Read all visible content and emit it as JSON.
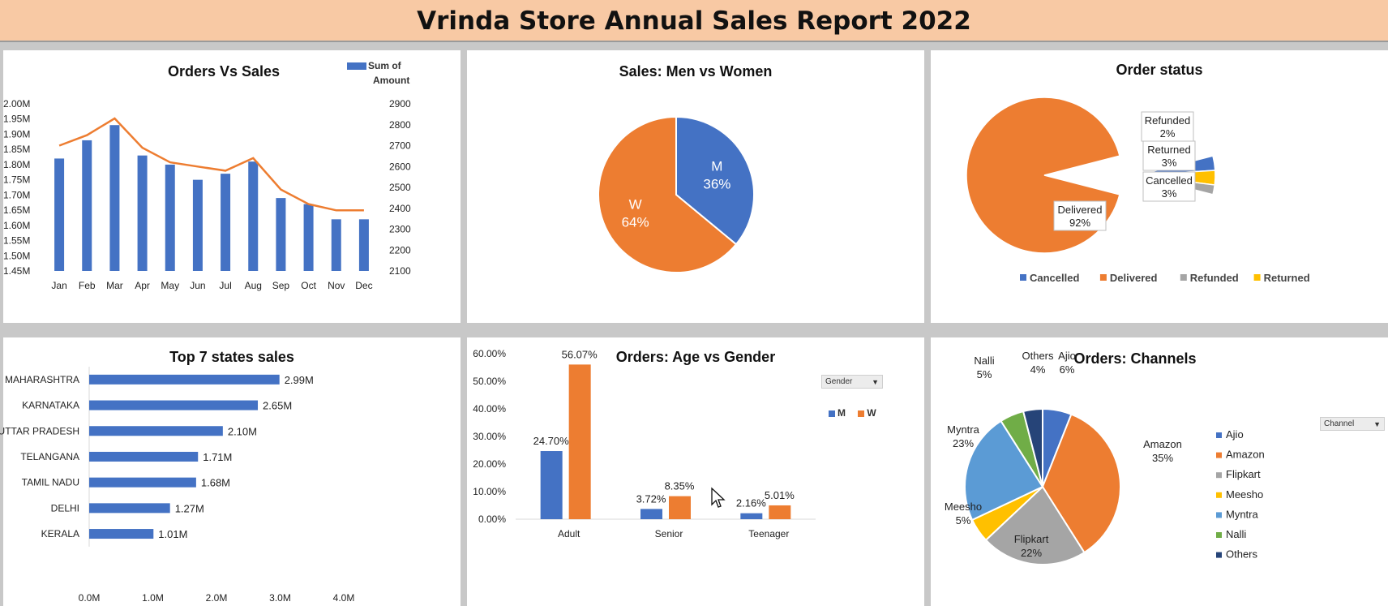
{
  "header": {
    "title": "Vrinda Store Annual Sales Report 2022"
  },
  "colors": {
    "blue": "#4472c4",
    "orange": "#ed7d31",
    "gray": "#a5a5a5",
    "yellow": "#ffc000",
    "lightblue": "#5b9bd5",
    "green": "#70ad47",
    "navy": "#264478"
  },
  "panels": {
    "orders_vs_sales": {
      "title": "Orders Vs Sales",
      "legend_line1": "Sum of",
      "legend_line2": "Amount"
    },
    "men_vs_women": {
      "title": "Sales: Men vs Women"
    },
    "order_status": {
      "title": "Order status"
    },
    "top_states": {
      "title": "Top 7 states sales"
    },
    "age_vs_gender": {
      "title": "Orders: Age vs Gender",
      "slicer": "Gender",
      "legend_m": "M",
      "legend_w": "W"
    },
    "channels": {
      "title": "Orders: Channels",
      "slicer": "Channel"
    }
  },
  "chart_data": [
    {
      "id": "orders_vs_sales",
      "type": "bar",
      "title": "Orders Vs Sales",
      "categories": [
        "Jan",
        "Feb",
        "Mar",
        "Apr",
        "May",
        "Jun",
        "Jul",
        "Aug",
        "Sep",
        "Oct",
        "Nov",
        "Dec"
      ],
      "series": [
        {
          "name": "Sum of Amount",
          "type": "bar",
          "axis": "left",
          "values": [
            1.82,
            1.88,
            1.93,
            1.83,
            1.8,
            1.75,
            1.77,
            1.81,
            1.69,
            1.67,
            1.62,
            1.62
          ]
        },
        {
          "name": "",
          "type": "line",
          "axis": "right",
          "values": [
            2700,
            2750,
            2830,
            2690,
            2620,
            2600,
            2580,
            2640,
            2490,
            2420,
            2390,
            2390
          ]
        }
      ],
      "ylim": [
        1.45,
        2.0
      ],
      "y_ticks": [
        "2.00M",
        "1.95M",
        "1.90M",
        "1.85M",
        "1.80M",
        "1.75M",
        "1.70M",
        "1.65M",
        "1.60M",
        "1.55M",
        "1.50M",
        "1.45M"
      ],
      "y2lim": [
        2100,
        2900
      ],
      "y2_ticks": [
        "2900",
        "2800",
        "2700",
        "2600",
        "2500",
        "2400",
        "2300",
        "2200",
        "2100"
      ],
      "legend": "top-right"
    },
    {
      "id": "men_vs_women",
      "type": "pie",
      "title": "Sales: Men vs Women",
      "slices": [
        {
          "name": "M",
          "value": 36,
          "label": "36%"
        },
        {
          "name": "W",
          "value": 64,
          "label": "64%"
        }
      ]
    },
    {
      "id": "order_status",
      "type": "pie",
      "title": "Order status",
      "slices": [
        {
          "name": "Delivered",
          "value": 92,
          "label": "92%"
        },
        {
          "name": "Cancelled",
          "value": 3,
          "label": "3%"
        },
        {
          "name": "Returned",
          "value": 3,
          "label": "3%"
        },
        {
          "name": "Refunded",
          "value": 2,
          "label": "2%"
        }
      ],
      "legend_entries": [
        "Cancelled",
        "Delivered",
        "Refunded",
        "Returned"
      ],
      "legend": "bottom"
    },
    {
      "id": "top_states",
      "type": "bar",
      "orientation": "horizontal",
      "title": "Top 7 states sales",
      "categories": [
        "MAHARASHTRA",
        "KARNATAKA",
        "UTTAR PRADESH",
        "TELANGANA",
        "TAMIL NADU",
        "DELHI",
        "KERALA"
      ],
      "values": [
        2.99,
        2.65,
        2.1,
        1.71,
        1.68,
        1.27,
        1.01
      ],
      "value_labels": [
        "2.99M",
        "2.65M",
        "2.10M",
        "1.71M",
        "1.68M",
        "1.27M",
        "1.01M"
      ],
      "xlim": [
        0,
        4
      ],
      "x_ticks": [
        "0.0M",
        "1.0M",
        "2.0M",
        "3.0M",
        "4.0M"
      ]
    },
    {
      "id": "age_vs_gender",
      "type": "bar",
      "title": "Orders: Age vs Gender",
      "categories": [
        "Adult",
        "Senior",
        "Teenager"
      ],
      "series": [
        {
          "name": "M",
          "values": [
            24.7,
            3.72,
            2.16
          ],
          "labels": [
            "24.70%",
            "3.72%",
            "2.16%"
          ]
        },
        {
          "name": "W",
          "values": [
            56.07,
            8.35,
            5.01
          ],
          "labels": [
            "56.07%",
            "8.35%",
            "5.01%"
          ]
        }
      ],
      "ylim": [
        0,
        60
      ],
      "y_ticks": [
        "60.00%",
        "50.00%",
        "40.00%",
        "30.00%",
        "20.00%",
        "10.00%",
        "0.00%"
      ],
      "legend": "top-right"
    },
    {
      "id": "channels",
      "type": "pie",
      "title": "Orders: Channels",
      "slices": [
        {
          "name": "Ajio",
          "value": 6,
          "label": "6%"
        },
        {
          "name": "Amazon",
          "value": 35,
          "label": "35%"
        },
        {
          "name": "Flipkart",
          "value": 22,
          "label": "22%"
        },
        {
          "name": "Meesho",
          "value": 5,
          "label": "5%"
        },
        {
          "name": "Myntra",
          "value": 23,
          "label": "23%"
        },
        {
          "name": "Nalli",
          "value": 5,
          "label": "5%"
        },
        {
          "name": "Others",
          "value": 4,
          "label": "4%"
        }
      ],
      "legend": "right"
    }
  ]
}
